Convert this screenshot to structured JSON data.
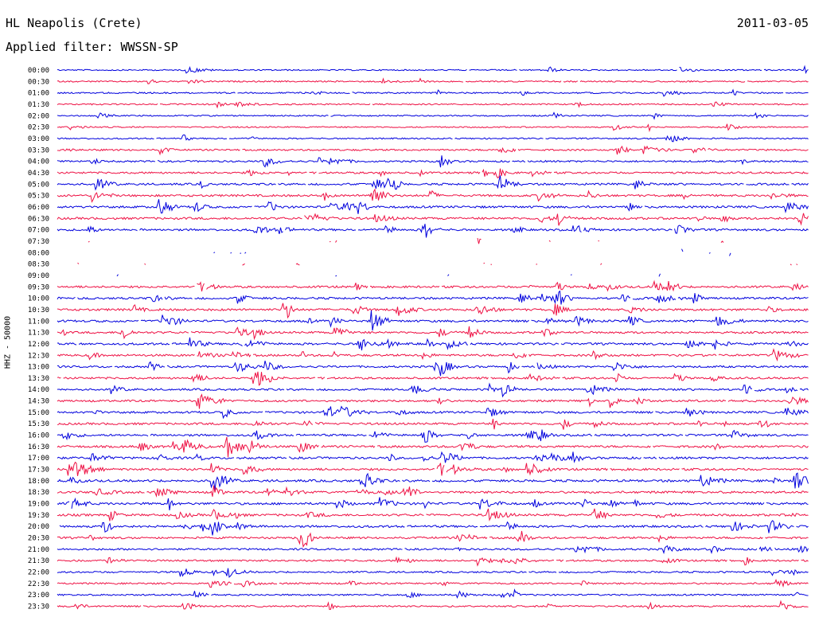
{
  "header": {
    "station": "HL Neapolis (Crete)",
    "date": "2011-03-05",
    "filter": "Applied filter: WWSSN-SP"
  },
  "chart_data": {
    "type": "line",
    "title": "HL Neapolis (Crete)",
    "subtitle": "Applied filter: WWSSN-SP",
    "ylabel": "HHZ - 50000",
    "date": "2011-03-05",
    "rows": [
      "00:00",
      "00:30",
      "01:00",
      "01:30",
      "02:00",
      "02:30",
      "03:00",
      "03:30",
      "04:00",
      "04:30",
      "05:00",
      "05:30",
      "06:00",
      "06:30",
      "07:00",
      "07:30",
      "08:00",
      "08:30",
      "09:00",
      "09:30",
      "10:00",
      "10:30",
      "11:00",
      "11:30",
      "12:00",
      "12:30",
      "13:00",
      "13:30",
      "14:00",
      "14:30",
      "15:00",
      "15:30",
      "16:00",
      "16:30",
      "17:00",
      "17:30",
      "18:00",
      "18:30",
      "19:00",
      "19:30",
      "20:00",
      "20:30",
      "21:00",
      "21:30",
      "22:00",
      "22:30",
      "23:00",
      "23:30"
    ],
    "colors": [
      "#0000dd",
      "#ee1144"
    ],
    "row_activity": [
      0.15,
      0.2,
      0.25,
      0.2,
      0.15,
      0.15,
      0.2,
      0.35,
      0.4,
      0.45,
      0.5,
      0.55,
      0.6,
      0.6,
      0.55,
      0.6,
      0.7,
      0.7,
      0.65,
      0.55,
      0.55,
      0.6,
      0.6,
      0.55,
      0.6,
      0.55,
      0.5,
      0.5,
      0.5,
      0.5,
      0.55,
      0.55,
      0.55,
      0.6,
      0.6,
      0.6,
      0.65,
      0.6,
      0.65,
      0.6,
      0.6,
      0.5,
      0.45,
      0.4,
      0.35,
      0.35,
      0.3,
      0.3
    ],
    "gap_rows": [
      15,
      16,
      17,
      18
    ]
  }
}
